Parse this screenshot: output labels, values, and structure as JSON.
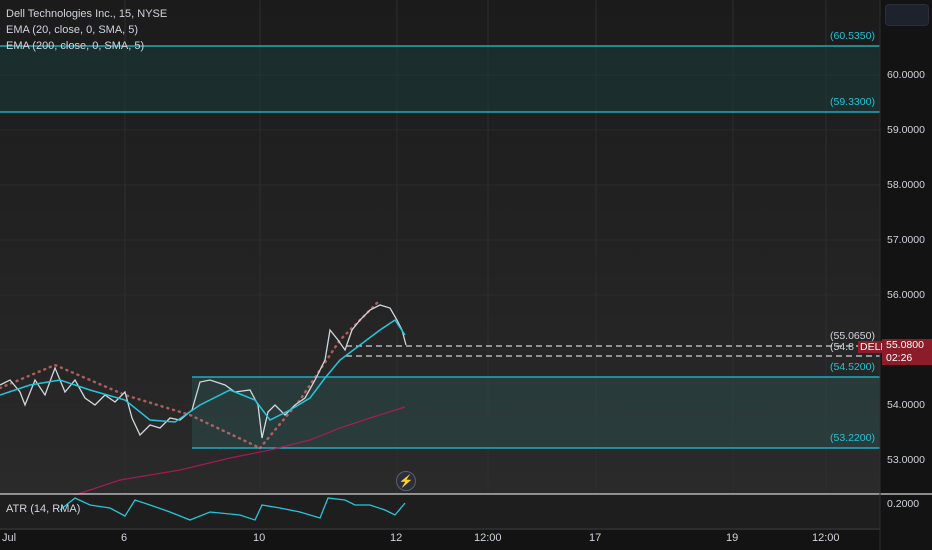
{
  "legend": {
    "title": "Dell Technologies Inc., 15, NYSE",
    "ema20": "EMA (20, close, 0, SMA, 5)",
    "ema200": "EMA (200, close, 0, SMA, 5)",
    "atr": "ATR (14, RMA)"
  },
  "levels": {
    "l60535": "(60.5350)",
    "l59330": "(59.3300)",
    "l55065": "(55.0650)",
    "l548": "(54.8",
    "l54520": "(54.5200)",
    "l53220": "(53.2200)"
  },
  "price_axis": [
    "60.0000",
    "59.0000",
    "58.0000",
    "57.0000",
    "56.0000",
    "55.0000",
    "54.0000",
    "53.0000"
  ],
  "price_tag": {
    "symbol": "DELL",
    "price": "55.0800",
    "countdown": "02:26"
  },
  "atr_value": "0.2000",
  "time_axis": [
    "Jul",
    "6",
    "10",
    "12",
    "12:00",
    "17",
    "19",
    "12:00"
  ],
  "colors": {
    "level": "#22c3d6",
    "ema20": "#26c6da",
    "ema200": "#c2185b",
    "price_tag": "#8b1c28"
  },
  "icons": {
    "replay": "flash-icon"
  }
}
